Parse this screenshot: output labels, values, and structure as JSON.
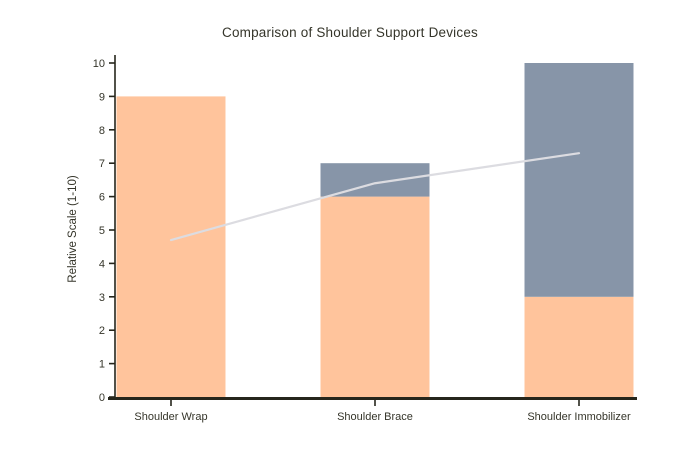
{
  "page": {
    "background": "#FFFFFF"
  },
  "chart_data": {
    "type": "bar",
    "stacked": true,
    "title": "Comparison of Shoulder Support Devices",
    "ylabel": "Relative Scale (1-10)",
    "xlabel": "",
    "categories": [
      "Shoulder Wrap",
      "Shoulder Brace",
      "Shoulder Immobilizer"
    ],
    "series": [
      {
        "name": "peach-bar-segment",
        "type": "bar",
        "color": "#FFC49C",
        "values": [
          9,
          6,
          3
        ]
      },
      {
        "name": "slate-bar-segment",
        "type": "bar",
        "color": "#8795A8",
        "values": [
          0,
          1,
          7
        ]
      },
      {
        "name": "trend-line",
        "type": "line",
        "color": "#DCDCE1",
        "values": [
          4.7,
          6.4,
          7.3
        ]
      }
    ],
    "bar_totals": [
      9,
      7,
      10
    ],
    "ylim": [
      0,
      10
    ],
    "yticks": [
      0,
      1,
      2,
      3,
      4,
      5,
      6,
      7,
      8,
      9,
      10
    ],
    "grid": false,
    "legend": "none",
    "colors": {
      "axis": "#26261C",
      "tick_text": "#35352A",
      "title_text": "#35352A",
      "background": "#FFFFFF"
    }
  }
}
